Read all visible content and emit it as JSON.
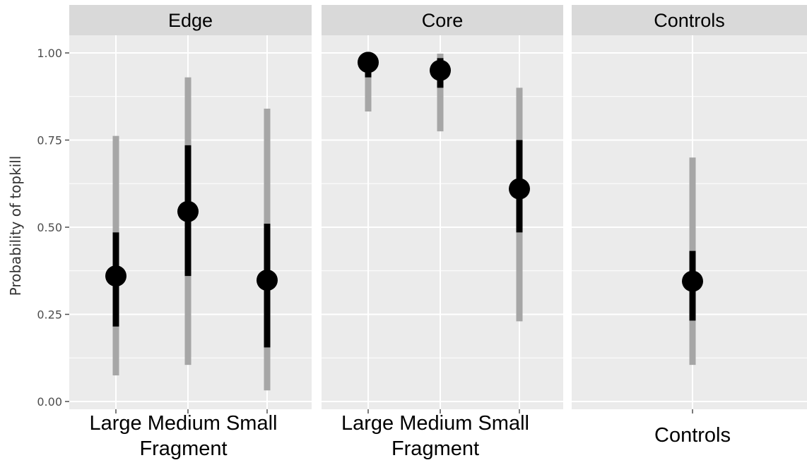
{
  "chart_data": {
    "type": "scatter",
    "ylabel": "Probability of topkill",
    "ylim": [
      0,
      1.05
    ],
    "yticks": [
      "0.00",
      "0.25",
      "0.50",
      "0.75",
      "1.00"
    ],
    "grid": true,
    "panels": [
      {
        "name": "Edge",
        "xlabel": "Fragment",
        "categories": [
          "Large",
          "Medium",
          "Small"
        ],
        "estimate": [
          0.36,
          0.545,
          0.348
        ],
        "inner_interval": [
          [
            0.215,
            0.485
          ],
          [
            0.36,
            0.735
          ],
          [
            0.155,
            0.51
          ]
        ],
        "outer_interval": [
          [
            0.075,
            0.762
          ],
          [
            0.105,
            0.93
          ],
          [
            0.032,
            0.84
          ]
        ]
      },
      {
        "name": "Core",
        "xlabel": "Fragment",
        "categories": [
          "Large",
          "Medium",
          "Small"
        ],
        "estimate": [
          0.973,
          0.95,
          0.61
        ],
        "inner_interval": [
          [
            0.93,
            0.985
          ],
          [
            0.9,
            0.985
          ],
          [
            0.485,
            0.75
          ]
        ],
        "outer_interval": [
          [
            0.832,
            0.992
          ],
          [
            0.775,
            0.998
          ],
          [
            0.23,
            0.9
          ]
        ]
      },
      {
        "name": "Controls",
        "xlabel": "",
        "categories": [
          "Controls"
        ],
        "estimate": [
          0.345
        ],
        "inner_interval": [
          [
            0.232,
            0.432
          ]
        ],
        "outer_interval": [
          [
            0.105,
            0.7
          ]
        ]
      }
    ],
    "colors": {
      "panel_bg": "#ebebeb",
      "strip_bg": "#d9d9d9",
      "grid_major": "#ffffff",
      "outer_interval": "#a6a6a6",
      "inner_interval": "#000000",
      "point": "#000000"
    }
  }
}
